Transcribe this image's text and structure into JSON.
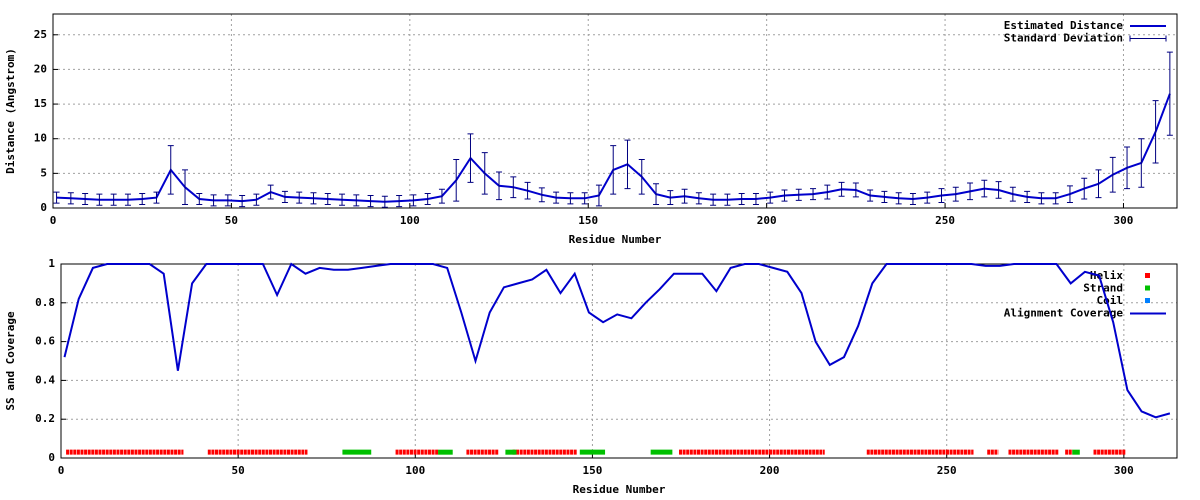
{
  "chart_data": [
    {
      "type": "line",
      "xlabel": "Residue Number",
      "ylabel": "Distance (Angstrom)",
      "x": [
        1,
        5,
        9,
        13,
        17,
        21,
        25,
        29,
        33,
        37,
        41,
        45,
        49,
        53,
        57,
        61,
        65,
        69,
        73,
        77,
        81,
        85,
        89,
        93,
        97,
        101,
        105,
        109,
        113,
        117,
        121,
        125,
        129,
        133,
        137,
        141,
        145,
        149,
        153,
        157,
        161,
        165,
        169,
        173,
        177,
        181,
        185,
        189,
        193,
        197,
        201,
        205,
        209,
        213,
        217,
        221,
        225,
        229,
        233,
        237,
        241,
        245,
        249,
        253,
        257,
        261,
        265,
        269,
        273,
        277,
        281,
        285,
        289,
        293,
        297,
        301,
        305,
        309,
        313
      ],
      "xlim": [
        0,
        315
      ],
      "xticks": [
        0,
        50,
        100,
        150,
        200,
        250,
        300
      ],
      "ylim": [
        0,
        28
      ],
      "yticks": [
        0,
        5,
        10,
        15,
        20,
        25
      ],
      "grid": true,
      "legend": "top-right",
      "series": [
        {
          "name": "Estimated Distance",
          "color": "#0000cc",
          "style": "line",
          "values": [
            1.5,
            1.4,
            1.3,
            1.2,
            1.2,
            1.2,
            1.3,
            1.5,
            5.5,
            3,
            1.3,
            1.1,
            1.1,
            1.0,
            1.2,
            2.3,
            1.6,
            1.5,
            1.4,
            1.3,
            1.2,
            1.1,
            1.0,
            0.9,
            1.0,
            1.1,
            1.3,
            1.7,
            4,
            7.2,
            5,
            3.2,
            3.0,
            2.5,
            1.9,
            1.5,
            1.4,
            1.4,
            1.8,
            5.5,
            6.3,
            4.5,
            2.0,
            1.5,
            1.7,
            1.4,
            1.2,
            1.2,
            1.3,
            1.3,
            1.5,
            1.8,
            1.9,
            2.0,
            2.3,
            2.7,
            2.6,
            1.8,
            1.6,
            1.4,
            1.3,
            1.5,
            1.8,
            2.0,
            2.4,
            2.8,
            2.6,
            2.0,
            1.6,
            1.4,
            1.4,
            2.0,
            2.8,
            3.5,
            4.8,
            5.8,
            6.5,
            11,
            16.5
          ]
        },
        {
          "name": "Standard Deviation",
          "color": "#000080",
          "style": "errorbars",
          "values": [
            0.8,
            0.8,
            0.8,
            0.8,
            0.8,
            0.8,
            0.8,
            0.8,
            3.5,
            2.5,
            0.8,
            0.8,
            0.8,
            0.8,
            0.8,
            1,
            0.8,
            0.8,
            0.8,
            0.8,
            0.8,
            0.8,
            0.8,
            0.8,
            0.8,
            0.8,
            0.8,
            1,
            3,
            3.5,
            3,
            2,
            1.5,
            1.2,
            1,
            0.8,
            0.8,
            0.8,
            1.5,
            3.5,
            3.5,
            2.5,
            1.5,
            1,
            1,
            0.8,
            0.8,
            0.8,
            0.8,
            0.8,
            0.8,
            0.8,
            0.8,
            0.8,
            1,
            1,
            1,
            0.8,
            0.8,
            0.8,
            0.8,
            0.8,
            1,
            1,
            1.2,
            1.2,
            1.2,
            1,
            0.8,
            0.8,
            0.8,
            1.2,
            1.5,
            2,
            2.5,
            3,
            3.5,
            4.5,
            6
          ]
        }
      ]
    },
    {
      "type": "line",
      "xlabel": "Residue Number",
      "ylabel": "SS and Coverage",
      "x": [
        1,
        5,
        9,
        13,
        17,
        21,
        25,
        29,
        33,
        37,
        41,
        45,
        49,
        53,
        57,
        61,
        65,
        69,
        73,
        77,
        81,
        85,
        89,
        93,
        97,
        101,
        105,
        109,
        113,
        117,
        121,
        125,
        129,
        133,
        137,
        141,
        145,
        149,
        153,
        157,
        161,
        165,
        169,
        173,
        177,
        181,
        185,
        189,
        193,
        197,
        201,
        205,
        209,
        213,
        217,
        221,
        225,
        229,
        233,
        237,
        241,
        245,
        249,
        253,
        257,
        261,
        265,
        269,
        273,
        277,
        281,
        285,
        289,
        293,
        297,
        301,
        305,
        309,
        313
      ],
      "xlim": [
        0,
        315
      ],
      "xticks": [
        0,
        50,
        100,
        150,
        200,
        250,
        300
      ],
      "ylim": [
        0,
        1
      ],
      "yticks": [
        0,
        0.2,
        0.4,
        0.6,
        0.8,
        1
      ],
      "grid": true,
      "legend": "top-right",
      "ss_level": 0.03,
      "series": [
        {
          "name": "Helix",
          "color": "#ff0000",
          "style": "ranges",
          "ranges": [
            [
              2,
              34
            ],
            [
              42,
              69
            ],
            [
              95,
              106
            ],
            [
              115,
              123
            ],
            [
              128,
              145
            ],
            [
              175,
              215
            ],
            [
              228,
              257
            ],
            [
              262,
              264
            ],
            [
              268,
              281
            ],
            [
              284,
              285
            ],
            [
              292,
              300
            ]
          ]
        },
        {
          "name": "Strand",
          "color": "#00c000",
          "style": "ranges",
          "ranges": [
            [
              80,
              87
            ],
            [
              107,
              110
            ],
            [
              126,
              128
            ],
            [
              147,
              153
            ],
            [
              167,
              172
            ],
            [
              286,
              287
            ]
          ]
        },
        {
          "name": "Coil",
          "color": "#0080ff",
          "style": "ranges",
          "ranges": []
        },
        {
          "name": "Alignment Coverage",
          "color": "#0000cc",
          "style": "line",
          "values": [
            0.52,
            0.82,
            0.98,
            1,
            1,
            1,
            1,
            0.95,
            0.45,
            0.9,
            1,
            1,
            1,
            1,
            1,
            0.84,
            1,
            0.95,
            0.98,
            0.97,
            0.97,
            0.98,
            0.99,
            1,
            1,
            1,
            1,
            0.98,
            0.75,
            0.5,
            0.75,
            0.88,
            0.9,
            0.92,
            0.97,
            0.85,
            0.95,
            0.75,
            0.7,
            0.74,
            0.72,
            0.8,
            0.87,
            0.95,
            0.95,
            0.95,
            0.86,
            0.98,
            1,
            1,
            0.98,
            0.96,
            0.85,
            0.6,
            0.48,
            0.52,
            0.68,
            0.9,
            1,
            1,
            1,
            1,
            1,
            1,
            1,
            0.99,
            0.99,
            1,
            1,
            1,
            1,
            0.9,
            0.96,
            0.94,
            0.7,
            0.35,
            0.24,
            0.21,
            0.23
          ]
        }
      ]
    }
  ]
}
